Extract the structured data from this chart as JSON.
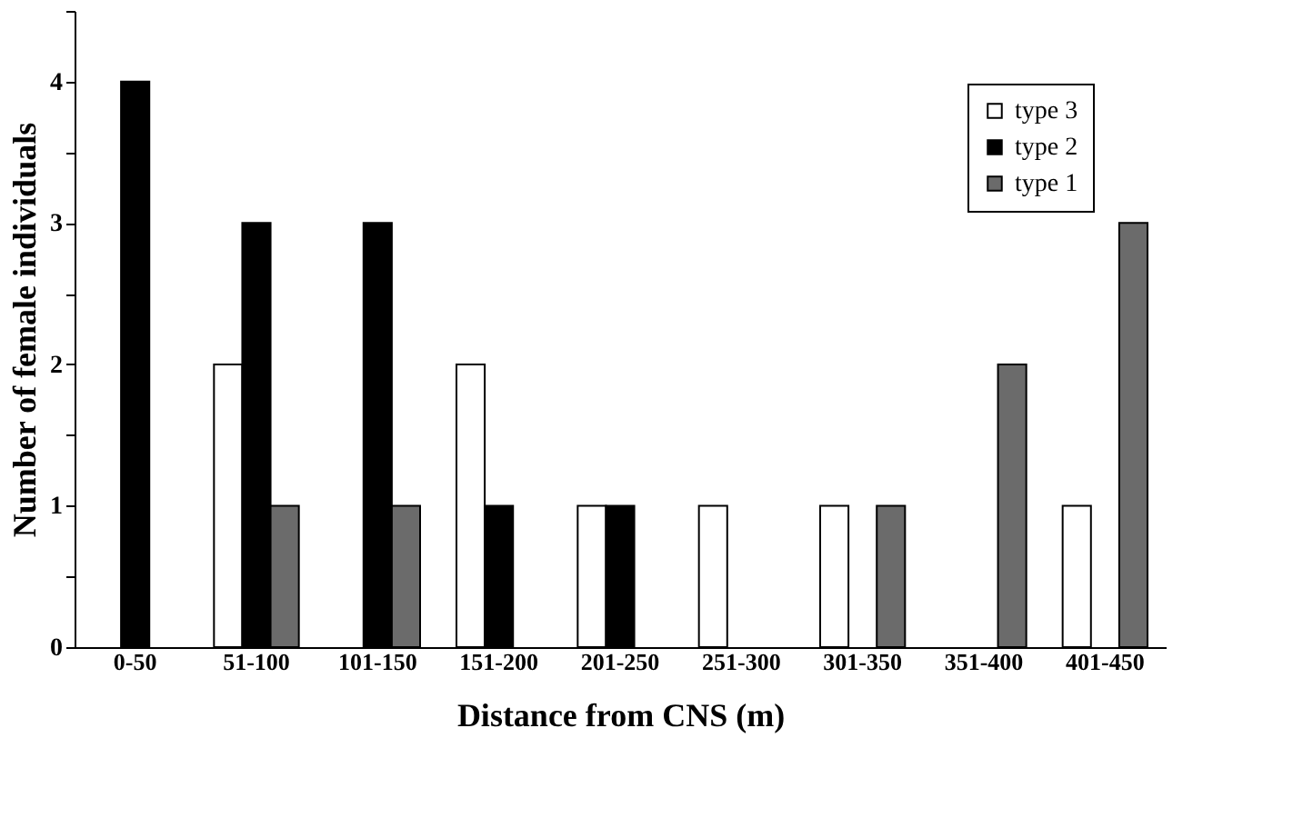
{
  "chart_data": {
    "type": "bar",
    "xlabel": "Distance from CNS (m)",
    "ylabel": "Number of female individuals",
    "categories": [
      "0-50",
      "51-100",
      "101-150",
      "151-200",
      "201-250",
      "251-300",
      "301-350",
      "351-400",
      "401-450"
    ],
    "series": [
      {
        "name": "type 3",
        "color": "#ffffff",
        "values": [
          null,
          2,
          null,
          2,
          1,
          1,
          1,
          null,
          1
        ]
      },
      {
        "name": "type 2",
        "color": "#000000",
        "values": [
          4,
          3,
          3,
          1,
          1,
          null,
          null,
          null,
          null
        ]
      },
      {
        "name": "type 1",
        "color": "#6b6b6b",
        "values": [
          null,
          1,
          1,
          null,
          null,
          null,
          1,
          2,
          3
        ]
      }
    ],
    "ylim": [
      0,
      4.5
    ],
    "yticks": [
      0,
      {
        "value": 0.5,
        "label": null
      },
      1,
      {
        "value": 1.5,
        "label": null
      },
      2,
      {
        "value": 2.5,
        "label": null
      },
      3,
      {
        "value": 3.5,
        "label": null
      },
      4,
      {
        "value": 4.5,
        "label": null
      }
    ],
    "grid": false,
    "legend": "top right"
  }
}
